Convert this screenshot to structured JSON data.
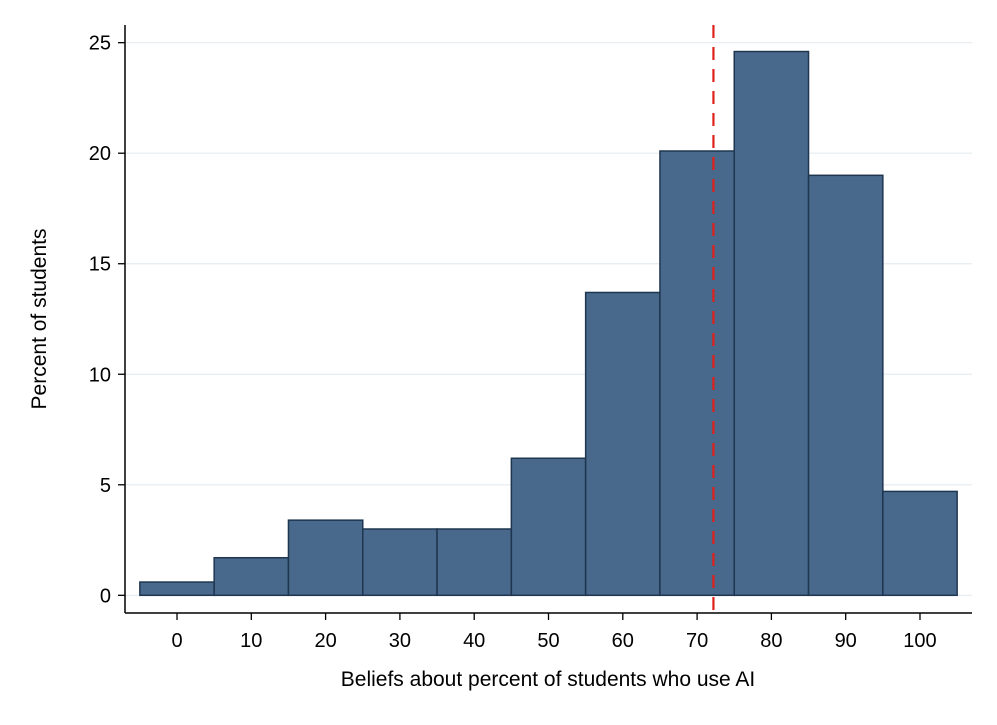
{
  "chart_data": {
    "type": "bar",
    "xlabel": "Beliefs about percent of students who use AI",
    "ylabel": "Percent of students",
    "bin_width": 10,
    "bins": [
      {
        "center": 0,
        "value": 0.6
      },
      {
        "center": 10,
        "value": 1.7
      },
      {
        "center": 20,
        "value": 3.4
      },
      {
        "center": 30,
        "value": 3.0
      },
      {
        "center": 40,
        "value": 3.0
      },
      {
        "center": 50,
        "value": 6.2
      },
      {
        "center": 60,
        "value": 13.7
      },
      {
        "center": 70,
        "value": 20.1
      },
      {
        "center": 80,
        "value": 24.6
      },
      {
        "center": 90,
        "value": 19.0
      },
      {
        "center": 100,
        "value": 4.7
      }
    ],
    "reference_line": {
      "x": 72.2,
      "style": "dashed",
      "color": "#e0201b"
    },
    "xlim": [
      -7,
      107
    ],
    "ylim": [
      -0.8,
      25.8
    ],
    "xticks": [
      "0",
      "10",
      "20",
      "30",
      "40",
      "50",
      "60",
      "70",
      "80",
      "90",
      "100"
    ],
    "yticks": [
      "0",
      "5",
      "10",
      "15",
      "20",
      "25"
    ],
    "grid": "horizontal",
    "bar_color": "#48698b",
    "bar_edge_color": "#1f3650"
  }
}
